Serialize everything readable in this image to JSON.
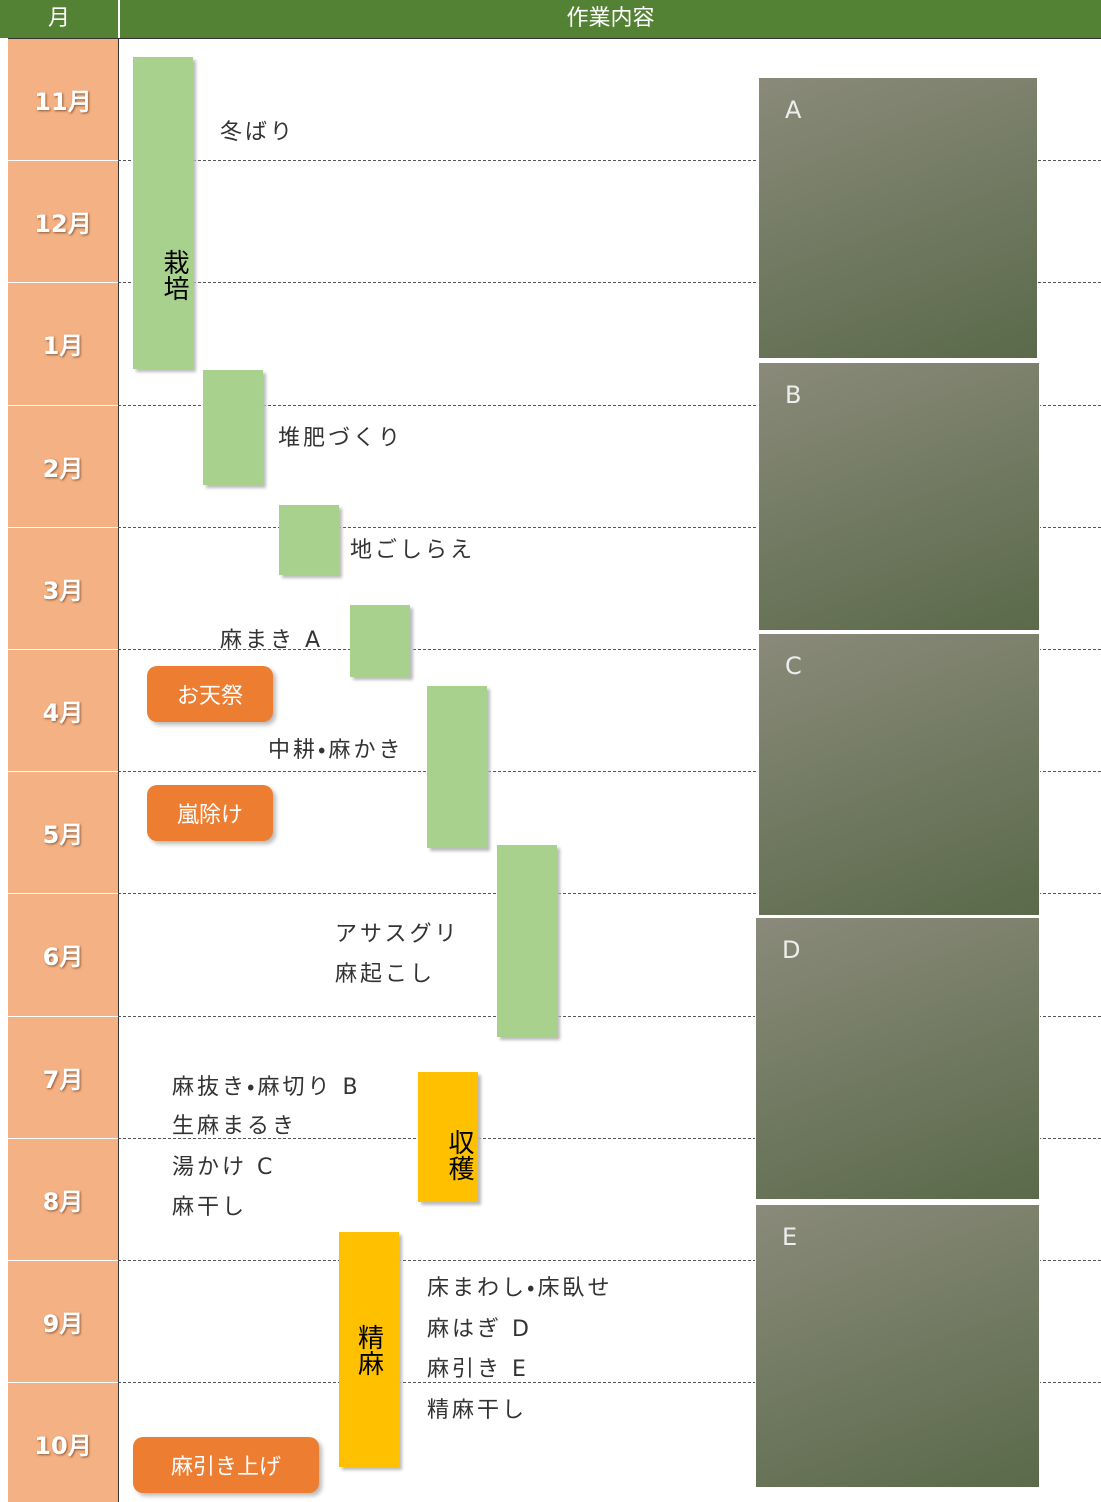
{
  "header": {
    "month": "月",
    "content": "作業内容"
  },
  "months": [
    "11月",
    "12月",
    "1月",
    "2月",
    "3月",
    "4月",
    "5月",
    "6月",
    "7月",
    "8月",
    "9月",
    "10月"
  ],
  "phases": {
    "cultivation": "栽培",
    "harvest": "収穫",
    "refining": "精麻"
  },
  "events": [
    "お天祭",
    "嵐除け",
    "麻引き上げ"
  ],
  "tasks": [
    "冬ばり",
    "堆肥づくり",
    "地ごしらえ",
    "麻まき A",
    "中耕・麻かき",
    "アサスグリ",
    "麻起こし",
    "麻抜き・麻切り B",
    "生麻まるき",
    "湯かけ C",
    "麻干し",
    "床まわし・床臥せ",
    "麻はぎ D",
    "麻引き E",
    "精麻干し"
  ],
  "photos": [
    "A",
    "B",
    "C",
    "D",
    "E"
  ]
}
